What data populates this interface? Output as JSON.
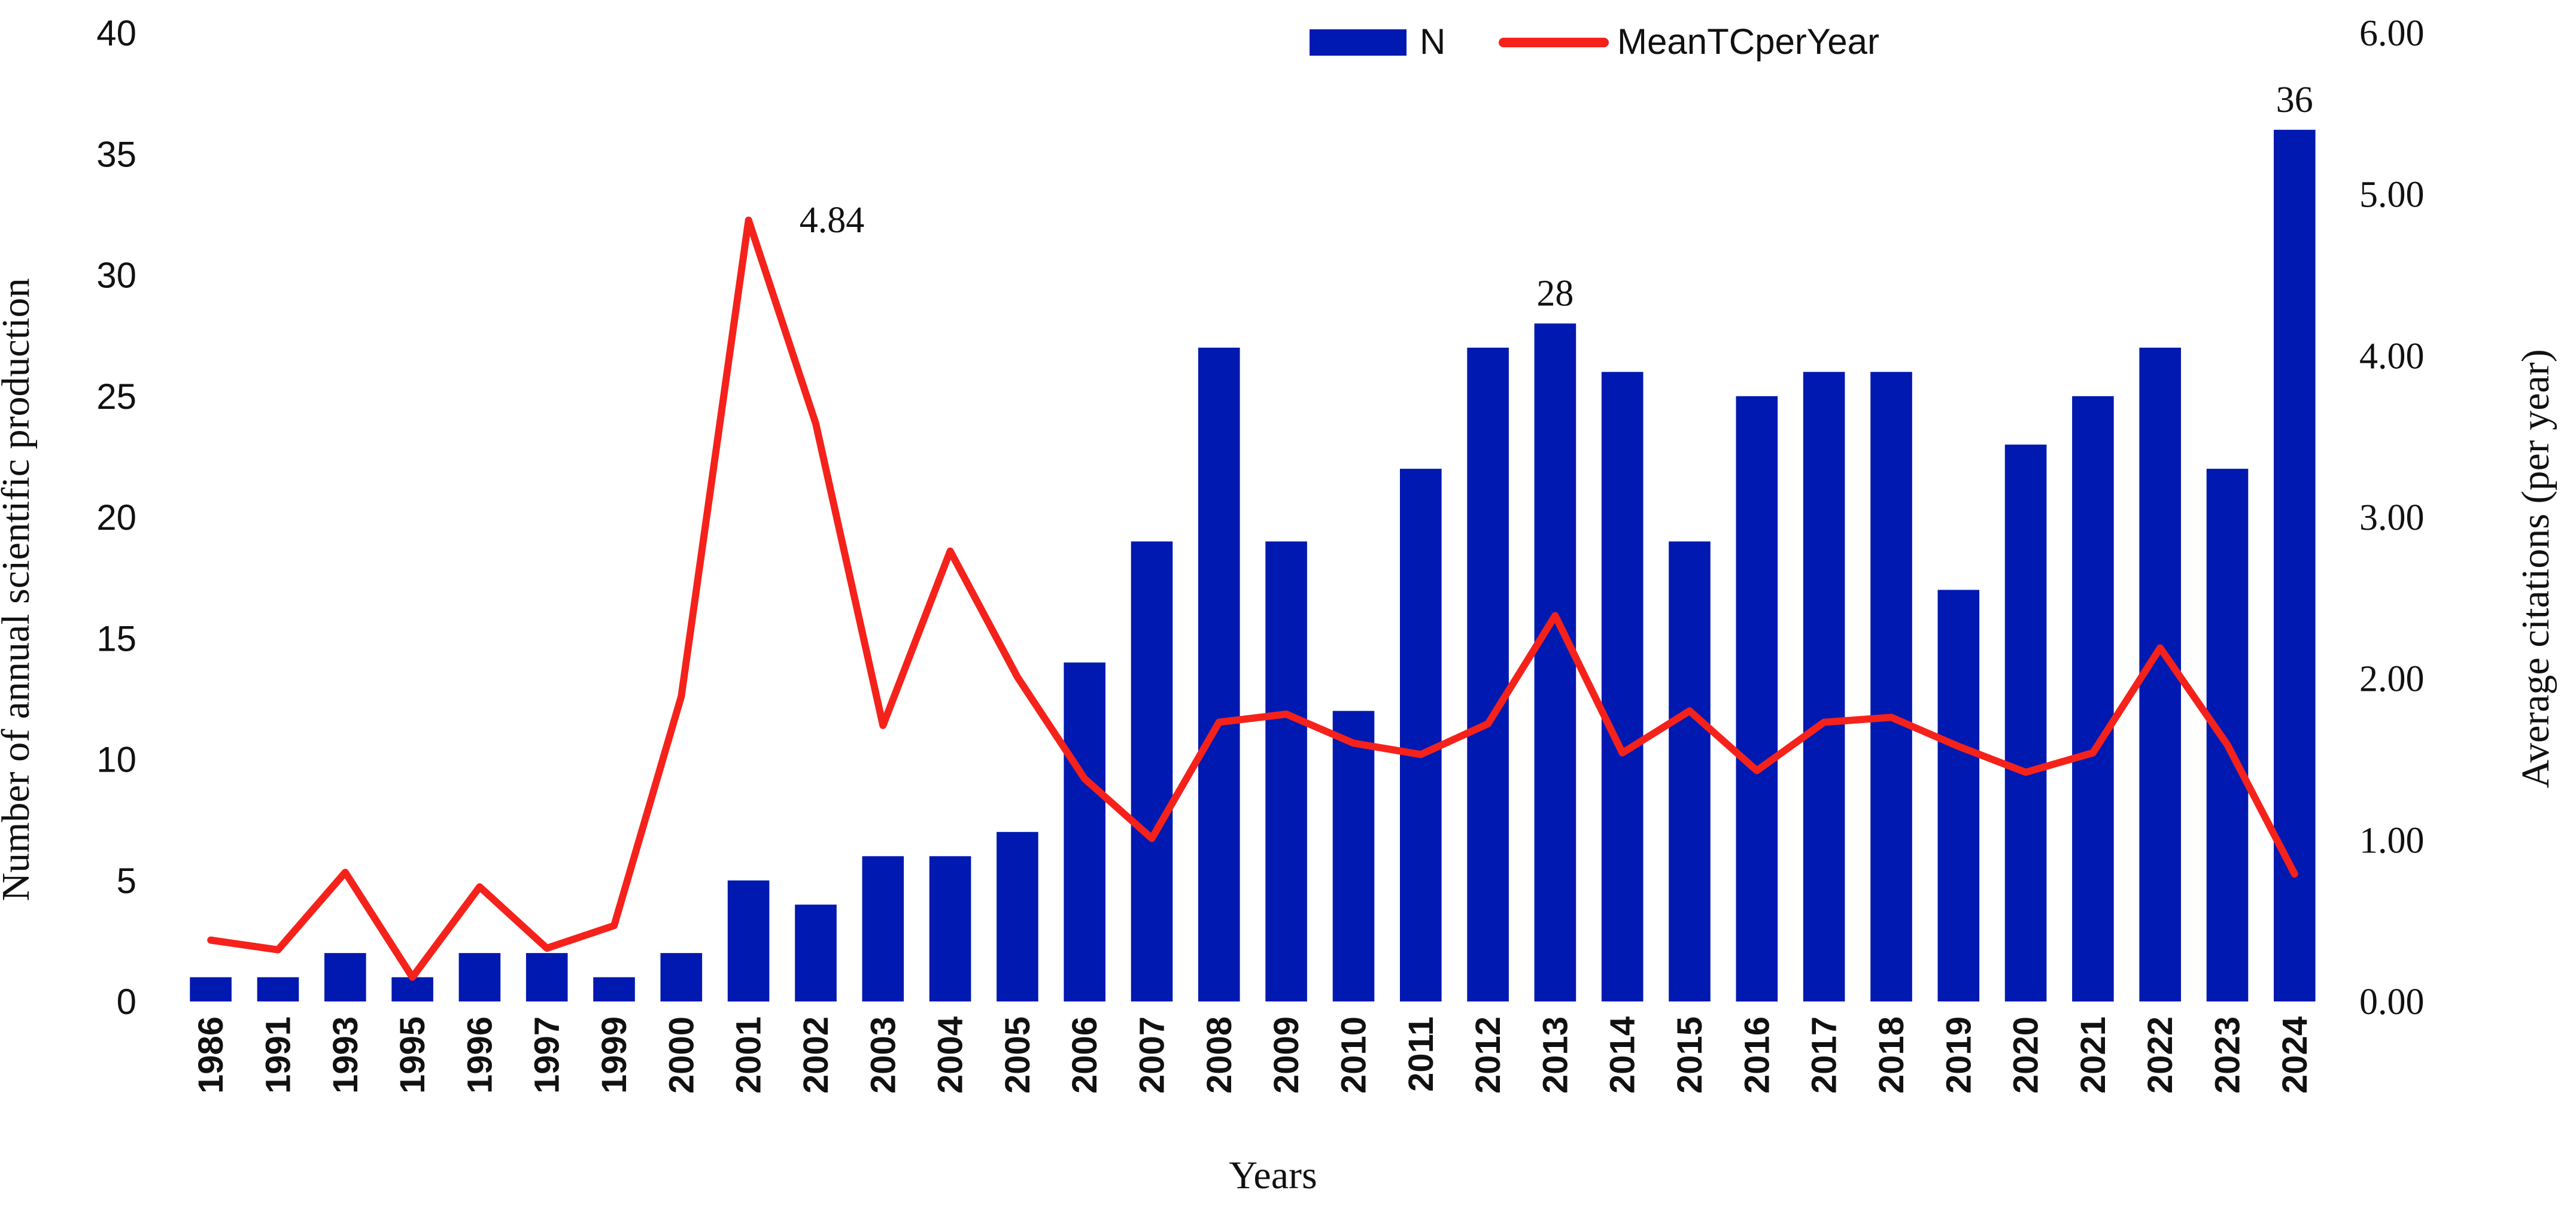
{
  "chart_data": {
    "type": "bar",
    "title": "",
    "xlabel": "Years",
    "ylabel": "Number of annual scientific production",
    "y2label": "Average citations (per year)",
    "ylim": [
      0,
      40
    ],
    "y2lim": [
      0,
      6
    ],
    "yticks": [
      "0",
      "5",
      "10",
      "15",
      "20",
      "25",
      "30",
      "35",
      "40"
    ],
    "y2ticks": [
      "0.00",
      "1.00",
      "2.00",
      "3.00",
      "4.00",
      "5.00",
      "6.00"
    ],
    "categories": [
      "1986",
      "1991",
      "1993",
      "1995",
      "1996",
      "1997",
      "1999",
      "2000",
      "2001",
      "2002",
      "2003",
      "2004",
      "2005",
      "2006",
      "2007",
      "2008",
      "2009",
      "2010",
      "2011",
      "2012",
      "2013",
      "2014",
      "2015",
      "2016",
      "2017",
      "2018",
      "2019",
      "2020",
      "2021",
      "2022",
      "2023",
      "2024"
    ],
    "series": [
      {
        "name": "N",
        "type": "bar",
        "axis": "left",
        "color": "#0019b0",
        "values": [
          1,
          1,
          2,
          1,
          2,
          2,
          1,
          2,
          5,
          4,
          6,
          6,
          7,
          14,
          19,
          27,
          19,
          12,
          22,
          27,
          28,
          26,
          19,
          25,
          26,
          26,
          17,
          23,
          25,
          27,
          22,
          36
        ]
      },
      {
        "name": "MeanTCperYear",
        "type": "line",
        "axis": "right",
        "color": "#f5221b",
        "values": [
          0.38,
          0.32,
          0.8,
          0.15,
          0.71,
          0.33,
          0.47,
          1.89,
          4.84,
          3.58,
          1.71,
          2.79,
          2.01,
          1.38,
          1.01,
          1.73,
          1.78,
          1.6,
          1.53,
          1.72,
          2.39,
          1.54,
          1.8,
          1.43,
          1.73,
          1.76,
          1.58,
          1.42,
          1.54,
          2.19,
          1.59,
          0.79
        ]
      }
    ],
    "annotations": [
      {
        "text": "4.84",
        "series": "MeanTCperYear",
        "category": "2001"
      },
      {
        "text": "28",
        "series": "N",
        "category": "2013"
      },
      {
        "text": "36",
        "series": "N",
        "category": "2024"
      }
    ],
    "legend": {
      "position": "top-center",
      "items": [
        "N",
        "MeanTCperYear"
      ]
    },
    "grid": false
  }
}
